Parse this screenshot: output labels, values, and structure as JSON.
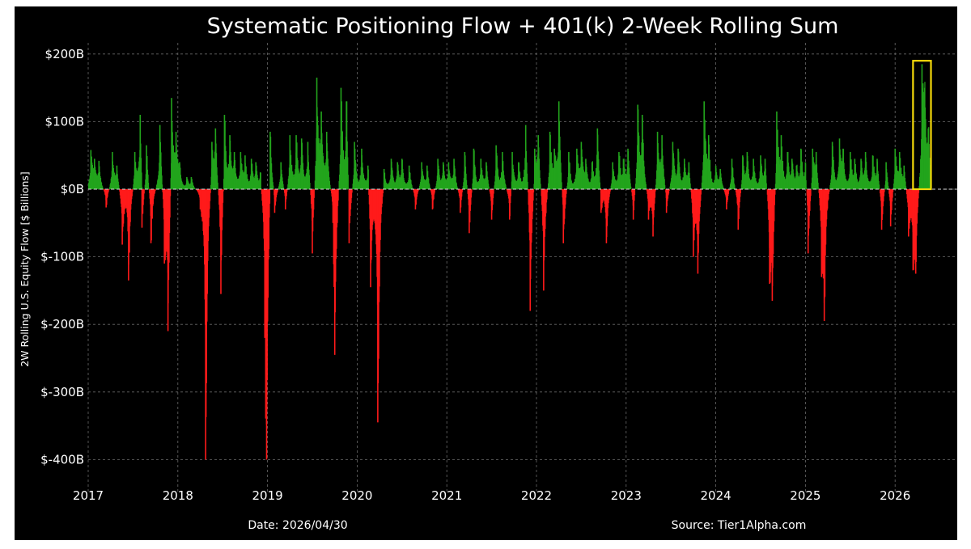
{
  "chart_data": {
    "type": "bar",
    "title": "Systematic Positioning Flow + 401(k) 2-Week Rolling Sum",
    "xlabel": "",
    "ylabel": "2W Rolling U.S. Equity Flow [$ Billions]",
    "x_ticks": [
      "2017",
      "2018",
      "2019",
      "2020",
      "2021",
      "2022",
      "2023",
      "2024",
      "2025",
      "2026"
    ],
    "y_ticks": [
      "$200B",
      "$100B",
      "$0B",
      "$-100B",
      "$-200B",
      "$-300B",
      "$-400B"
    ],
    "y_tick_values": [
      200,
      100,
      0,
      -100,
      -200,
      -300,
      -400
    ],
    "xlim": [
      2017.0,
      2026.75
    ],
    "ylim": [
      -440,
      220
    ],
    "grid": true,
    "colors": {
      "positive": "#22a41c",
      "negative": "#ff1a1a",
      "highlight": "#f5d90a",
      "background": "#000000"
    },
    "date_label": "Date: 2026/04/30",
    "source_label": "Source: Tier1Alpha.com",
    "highlight": {
      "x_start": 2026.2,
      "x_end": 2026.4,
      "y_top": 190,
      "y_bottom": 0
    },
    "spikes": [
      [
        2017.03,
        58
      ],
      [
        2017.07,
        45
      ],
      [
        2017.12,
        42
      ],
      [
        2017.2,
        -27
      ],
      [
        2017.27,
        55
      ],
      [
        2017.32,
        35
      ],
      [
        2017.38,
        -82
      ],
      [
        2017.45,
        -135
      ],
      [
        2017.52,
        55
      ],
      [
        2017.58,
        110
      ],
      [
        2017.6,
        -57
      ],
      [
        2017.65,
        65
      ],
      [
        2017.7,
        -80
      ],
      [
        2017.8,
        95
      ],
      [
        2017.85,
        -110
      ],
      [
        2017.89,
        -210
      ],
      [
        2017.93,
        135
      ],
      [
        2017.98,
        85
      ],
      [
        2018.02,
        40
      ],
      [
        2018.1,
        18
      ],
      [
        2018.15,
        18
      ],
      [
        2018.25,
        -30
      ],
      [
        2018.31,
        -400
      ],
      [
        2018.38,
        70
      ],
      [
        2018.42,
        90
      ],
      [
        2018.48,
        -155
      ],
      [
        2018.52,
        110
      ],
      [
        2018.58,
        80
      ],
      [
        2018.63,
        55
      ],
      [
        2018.7,
        55
      ],
      [
        2018.75,
        50
      ],
      [
        2018.82,
        45
      ],
      [
        2018.87,
        40
      ],
      [
        2018.92,
        25
      ],
      [
        2018.97,
        -220
      ],
      [
        2018.99,
        -400
      ],
      [
        2019.03,
        85
      ],
      [
        2019.08,
        -35
      ],
      [
        2019.15,
        40
      ],
      [
        2019.2,
        -30
      ],
      [
        2019.25,
        80
      ],
      [
        2019.32,
        80
      ],
      [
        2019.38,
        75
      ],
      [
        2019.45,
        70
      ],
      [
        2019.5,
        -95
      ],
      [
        2019.55,
        165
      ],
      [
        2019.6,
        115
      ],
      [
        2019.66,
        85
      ],
      [
        2019.73,
        -50
      ],
      [
        2019.75,
        -245
      ],
      [
        2019.82,
        150
      ],
      [
        2019.88,
        130
      ],
      [
        2019.91,
        -80
      ],
      [
        2019.97,
        70
      ],
      [
        2020.05,
        60
      ],
      [
        2020.12,
        35
      ],
      [
        2020.15,
        -145
      ],
      [
        2020.23,
        -345
      ],
      [
        2020.3,
        30
      ],
      [
        2020.38,
        45
      ],
      [
        2020.45,
        40
      ],
      [
        2020.5,
        45
      ],
      [
        2020.58,
        35
      ],
      [
        2020.65,
        -30
      ],
      [
        2020.72,
        40
      ],
      [
        2020.78,
        35
      ],
      [
        2020.84,
        -30
      ],
      [
        2020.9,
        45
      ],
      [
        2020.96,
        40
      ],
      [
        2021.02,
        40
      ],
      [
        2021.08,
        45
      ],
      [
        2021.15,
        -35
      ],
      [
        2021.2,
        55
      ],
      [
        2021.25,
        -65
      ],
      [
        2021.3,
        60
      ],
      [
        2021.38,
        45
      ],
      [
        2021.44,
        40
      ],
      [
        2021.5,
        -45
      ],
      [
        2021.55,
        65
      ],
      [
        2021.62,
        55
      ],
      [
        2021.7,
        -45
      ],
      [
        2021.73,
        55
      ],
      [
        2021.8,
        40
      ],
      [
        2021.88,
        95
      ],
      [
        2021.93,
        -180
      ],
      [
        2021.98,
        60
      ],
      [
        2022.02,
        80
      ],
      [
        2022.08,
        -150
      ],
      [
        2022.15,
        85
      ],
      [
        2022.2,
        60
      ],
      [
        2022.25,
        130
      ],
      [
        2022.3,
        -80
      ],
      [
        2022.36,
        55
      ],
      [
        2022.45,
        60
      ],
      [
        2022.5,
        70
      ],
      [
        2022.55,
        45
      ],
      [
        2022.62,
        40
      ],
      [
        2022.68,
        90
      ],
      [
        2022.72,
        -35
      ],
      [
        2022.78,
        -80
      ],
      [
        2022.85,
        40
      ],
      [
        2022.92,
        55
      ],
      [
        2022.97,
        45
      ],
      [
        2023.02,
        60
      ],
      [
        2023.08,
        -45
      ],
      [
        2023.13,
        125
      ],
      [
        2023.18,
        110
      ],
      [
        2023.25,
        -45
      ],
      [
        2023.3,
        -70
      ],
      [
        2023.35,
        85
      ],
      [
        2023.4,
        80
      ],
      [
        2023.45,
        -35
      ],
      [
        2023.52,
        70
      ],
      [
        2023.58,
        60
      ],
      [
        2023.65,
        45
      ],
      [
        2023.7,
        40
      ],
      [
        2023.75,
        -100
      ],
      [
        2023.8,
        -125
      ],
      [
        2023.87,
        130
      ],
      [
        2023.92,
        80
      ],
      [
        2024.0,
        35
      ],
      [
        2024.05,
        30
      ],
      [
        2024.12,
        -30
      ],
      [
        2024.18,
        45
      ],
      [
        2024.25,
        -60
      ],
      [
        2024.3,
        50
      ],
      [
        2024.35,
        55
      ],
      [
        2024.42,
        45
      ],
      [
        2024.5,
        50
      ],
      [
        2024.55,
        45
      ],
      [
        2024.6,
        -140
      ],
      [
        2024.63,
        -165
      ],
      [
        2024.68,
        115
      ],
      [
        2024.73,
        80
      ],
      [
        2024.8,
        55
      ],
      [
        2024.85,
        45
      ],
      [
        2024.9,
        35
      ],
      [
        2024.95,
        60
      ],
      [
        2025.0,
        40
      ],
      [
        2025.03,
        -95
      ],
      [
        2025.08,
        60
      ],
      [
        2025.12,
        55
      ],
      [
        2025.18,
        -130
      ],
      [
        2025.21,
        -195
      ],
      [
        2025.3,
        70
      ],
      [
        2025.38,
        75
      ],
      [
        2025.42,
        60
      ],
      [
        2025.5,
        55
      ],
      [
        2025.55,
        45
      ],
      [
        2025.62,
        45
      ],
      [
        2025.67,
        55
      ],
      [
        2025.75,
        50
      ],
      [
        2025.8,
        45
      ],
      [
        2025.85,
        -60
      ],
      [
        2025.9,
        40
      ],
      [
        2025.95,
        -55
      ],
      [
        2026.0,
        60
      ],
      [
        2026.05,
        55
      ],
      [
        2026.1,
        35
      ],
      [
        2026.15,
        -70
      ],
      [
        2026.2,
        -120
      ],
      [
        2026.23,
        -125
      ],
      [
        2026.3,
        185
      ],
      [
        2026.33,
        150
      ],
      [
        2026.37,
        90
      ]
    ]
  }
}
